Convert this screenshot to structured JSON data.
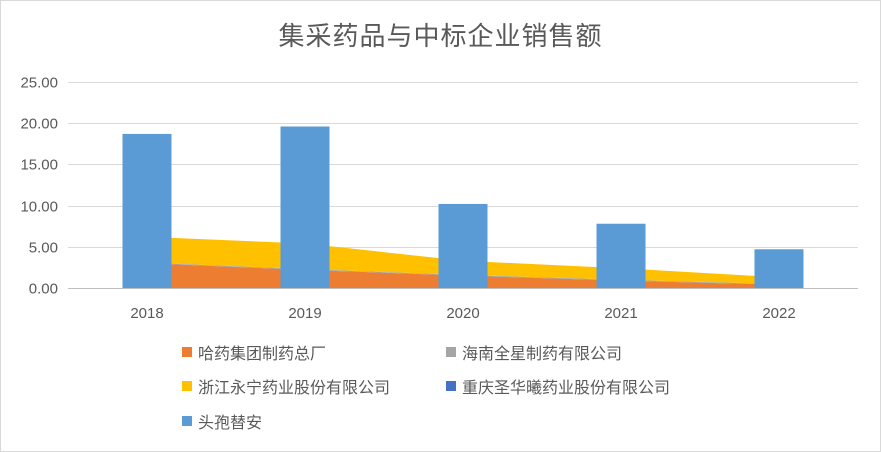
{
  "chart_data": {
    "type": "bar",
    "title": "集采药品与中标企业销售额",
    "categories": [
      "2018",
      "2019",
      "2020",
      "2021",
      "2022"
    ],
    "y_ticks": [
      "0.00",
      "5.00",
      "10.00",
      "15.00",
      "20.00",
      "25.00"
    ],
    "ylim": [
      0,
      25
    ],
    "grid": true,
    "legend_position": "bottom",
    "series": [
      {
        "name": "哈药集团制药总厂",
        "type": "area",
        "color": "#ED7D31",
        "values": [
          3.0,
          2.2,
          1.5,
          0.9,
          0.4
        ]
      },
      {
        "name": "海南全星制药有限公司",
        "type": "area",
        "color": "#A5A5A5",
        "values": [
          0.1,
          0.1,
          0.1,
          0.1,
          0.1
        ]
      },
      {
        "name": "浙江永宁药业股份有限公司",
        "type": "area",
        "color": "#FFC000",
        "values": [
          3.1,
          3.1,
          1.7,
          1.4,
          0.8
        ]
      },
      {
        "name": "重庆圣华曦药业股份有限公司",
        "type": "area",
        "color": "#4472C4",
        "values": [
          0,
          0,
          0,
          0,
          0
        ]
      },
      {
        "name": "头孢替安",
        "type": "bar",
        "color": "#5B9BD5",
        "values": [
          18.7,
          19.6,
          10.2,
          7.8,
          4.7
        ]
      }
    ]
  }
}
